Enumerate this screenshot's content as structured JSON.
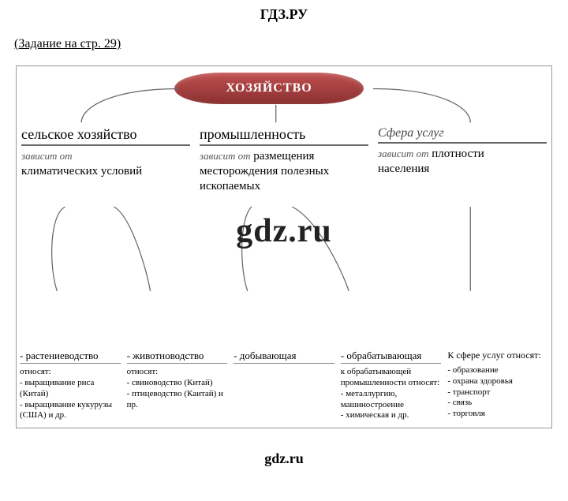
{
  "site_title": "ГДЗ.РУ",
  "task_link": "(Задание на стр. 29)",
  "root": "ХОЗЯЙСТВО",
  "mid": [
    {
      "title": "сельское хозяйство",
      "depends_label": "зависит от",
      "depends_text": "",
      "body": "климатических условий"
    },
    {
      "title": "промышленность",
      "depends_label": "зависит от",
      "depends_text": "размещения",
      "body": "месторождения полезных ископаемых"
    },
    {
      "title": "Сфера услуг",
      "depends_label": "зависит от",
      "depends_text": "плотности",
      "body": "населения"
    }
  ],
  "watermark": "gdz.ru",
  "leaves": [
    {
      "header": "- растениеводство",
      "sub": "относят:",
      "list": "- выращивание риса (Китай)\n- выращивание кукурузы (США) и др."
    },
    {
      "header": "- животноводство",
      "sub": "относят:",
      "list": "- свиноводство (Китай)\n- птицеводство (Каитай) и пр."
    },
    {
      "header": "- добывающая",
      "sub": "",
      "list": ""
    },
    {
      "header": "- обрабатывающая",
      "sub": "к обрабатывающей промышленности относят:",
      "list": "- металлургию, машиностроение\n- химическая и др."
    },
    {
      "header": "К сфере услуг относят:",
      "sub": "",
      "list": "- образование\n- охрана здоровья\n- транспорт\n- связь\n- торговля"
    }
  ],
  "footer_brand": "gdz.ru",
  "colors": {
    "border": "#999",
    "stroke": "#666",
    "pill_top": "#c05050",
    "pill_bot": "#8a3030"
  }
}
